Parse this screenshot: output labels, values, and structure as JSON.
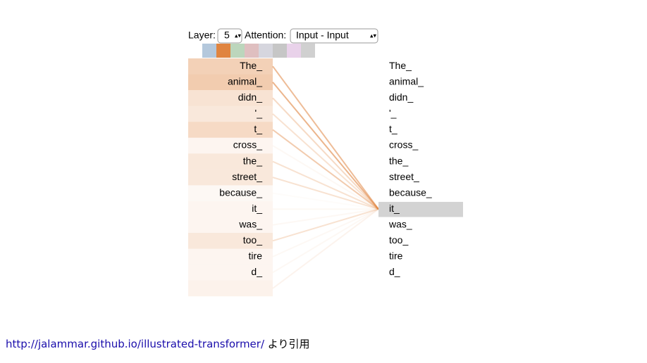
{
  "controls": {
    "layer_label": "Layer:",
    "layer_value": "5",
    "attention_label": "Attention:",
    "attention_value": "Input - Input"
  },
  "head_colors": [
    "#b4c8dc",
    "#e0843f",
    "#bcd6bc",
    "#dfbfc0",
    "#d6d6de",
    "#c6c6c6",
    "#e9d2ea",
    "#d0d0d0"
  ],
  "selected_head": 1,
  "tokens": [
    "The_",
    "animal_",
    "didn_",
    "'_",
    "t_",
    "cross_",
    "the_",
    "street_",
    "because_",
    "it_",
    "was_",
    "too_",
    "tire",
    "d_",
    null
  ],
  "selected_token": 9,
  "attention": [
    0.45,
    0.5,
    0.25,
    0.2,
    0.35,
    0.05,
    0.2,
    0.2,
    0.02,
    0.05,
    0.05,
    0.2,
    0.05,
    0.05,
    0.08
  ],
  "footer": {
    "link": "http://jalammar.github.io/illustrated-transformer/",
    "note": "より引用"
  }
}
